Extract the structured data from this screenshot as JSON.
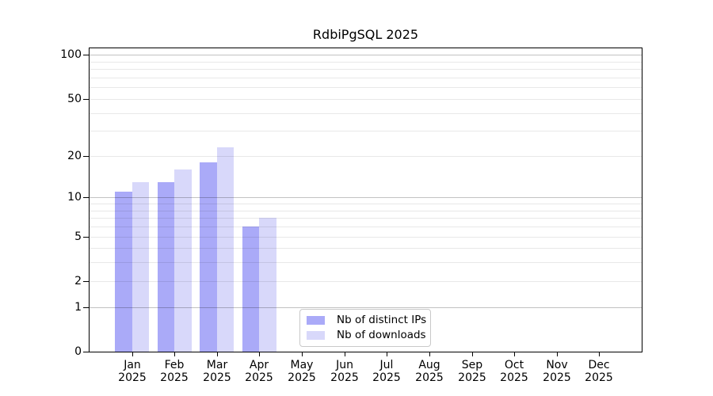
{
  "chart_data": {
    "type": "bar",
    "title": "RdbiPgSQL 2025",
    "categories": [
      "Jan 2025",
      "Feb 2025",
      "Mar 2025",
      "Apr 2025",
      "May 2025",
      "Jun 2025",
      "Jul 2025",
      "Aug 2025",
      "Sep 2025",
      "Oct 2025",
      "Nov 2025",
      "Dec 2025"
    ],
    "series": [
      {
        "name": "Nb of distinct IPs",
        "values": [
          11,
          13,
          18,
          6,
          null,
          null,
          null,
          null,
          null,
          null,
          null,
          null
        ]
      },
      {
        "name": "Nb of downloads",
        "values": [
          13,
          16,
          23,
          7,
          null,
          null,
          null,
          null,
          null,
          null,
          null,
          null
        ]
      }
    ],
    "xlabel": "",
    "ylabel": "",
    "yscale": "log1p",
    "yticks": [
      0,
      1,
      2,
      5,
      10,
      20,
      50,
      100
    ],
    "ylim": [
      0,
      111
    ],
    "grid": "on",
    "legend_position": "lower center"
  },
  "style": {
    "series_colors": [
      "#aaaaf8",
      "#d8d8fa"
    ],
    "gridlines": {
      "major_values": [
        1,
        10,
        100
      ],
      "minor_values": [
        2,
        3,
        4,
        5,
        6,
        7,
        8,
        9,
        20,
        30,
        40,
        50,
        60,
        70,
        80,
        90
      ],
      "major_color": "rgba(0,0,0,0.24)",
      "minor_color": "rgba(0,0,0,0.09)"
    },
    "spine_color": "#000000",
    "legend_border_color": "#c9c9c9",
    "text_color": "#000000",
    "background": "#ffffff"
  }
}
